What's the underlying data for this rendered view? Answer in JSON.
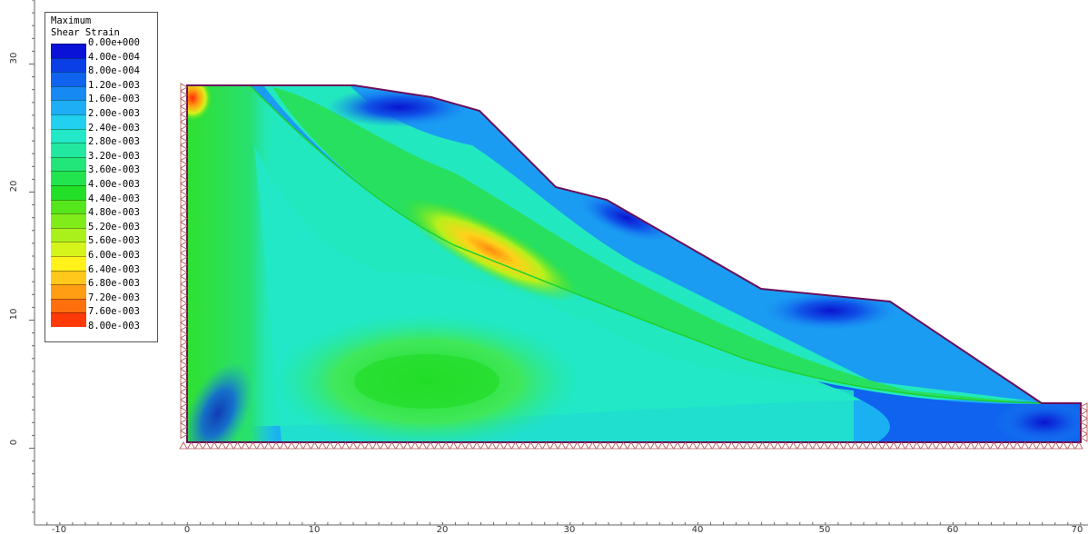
{
  "legend": {
    "title_line1": "Maximum",
    "title_line2": "Shear Strain",
    "values": [
      "0.00e+000",
      "4.00e-004",
      "8.00e-004",
      "1.20e-003",
      "1.60e-003",
      "2.00e-003",
      "2.40e-003",
      "2.80e-003",
      "3.20e-003",
      "3.60e-003",
      "4.00e-003",
      "4.40e-003",
      "4.80e-003",
      "5.20e-003",
      "5.60e-003",
      "6.00e-003",
      "6.40e-003",
      "6.80e-003",
      "7.20e-003",
      "7.60e-003",
      "8.00e-003"
    ],
    "colors": [
      "#0a12d8",
      "#0a3ee6",
      "#0f63ee",
      "#1689f2",
      "#1eaef5",
      "#22d0f0",
      "#22e8c8",
      "#22e8a0",
      "#22e67a",
      "#22e44f",
      "#22e028",
      "#55e61c",
      "#80ec1a",
      "#aaf01a",
      "#d4f41a",
      "#fff21a",
      "#ffc81a",
      "#ff9e12",
      "#ff700c",
      "#ff3a08"
    ]
  },
  "axes": {
    "x_ticks": [
      "-10",
      "0",
      "10",
      "20",
      "30",
      "40",
      "50",
      "60",
      "70"
    ],
    "y_ticks": [
      "30",
      "20",
      "10",
      "0"
    ]
  },
  "model": {
    "boundary_color": "#6a0f5a",
    "support_color": "#b05050"
  }
}
